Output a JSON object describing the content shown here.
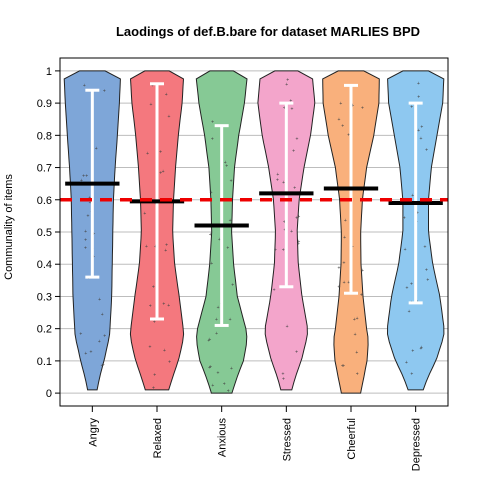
{
  "chart_data": {
    "type": "violin",
    "title": "Laodings of def.B.bare for dataset MARLIES BPD",
    "xlabel": "",
    "ylabel": "Communality of items",
    "ylim": [
      -0.04,
      1.04
    ],
    "yticks": [
      "0",
      "0.1",
      "0.2",
      "0.3",
      "0.4",
      "0.5",
      "0.6",
      "0.7",
      "0.8",
      "0.9",
      "1"
    ],
    "grid": true,
    "reference_line": {
      "value": 0.6,
      "color": "#ee0000",
      "style": "dashed"
    },
    "categories": [
      "Angry",
      "Relaxed",
      "Anxious",
      "Stressed",
      "Cheerful",
      "Depressed"
    ],
    "colors": [
      "#7ea6d8",
      "#f4787e",
      "#86c995",
      "#f3a5cb",
      "#f9b07c",
      "#8ec8f0"
    ],
    "series": [
      {
        "category": "Angry",
        "mean": 0.65,
        "ci_low": 0.36,
        "ci_high": 0.94,
        "min": 0.01,
        "max": 1.0
      },
      {
        "category": "Relaxed",
        "mean": 0.595,
        "ci_low": 0.23,
        "ci_high": 0.96,
        "min": 0.01,
        "max": 1.0
      },
      {
        "category": "Anxious",
        "mean": 0.52,
        "ci_low": 0.21,
        "ci_high": 0.83,
        "min": 0.0,
        "max": 1.0
      },
      {
        "category": "Stressed",
        "mean": 0.62,
        "ci_low": 0.33,
        "ci_high": 0.9,
        "min": 0.01,
        "max": 1.0
      },
      {
        "category": "Cheerful",
        "mean": 0.635,
        "ci_low": 0.31,
        "ci_high": 0.955,
        "min": 0.0,
        "max": 1.0
      },
      {
        "category": "Depressed",
        "mean": 0.59,
        "ci_low": 0.28,
        "ci_high": 0.9,
        "min": 0.01,
        "max": 1.0
      }
    ]
  }
}
